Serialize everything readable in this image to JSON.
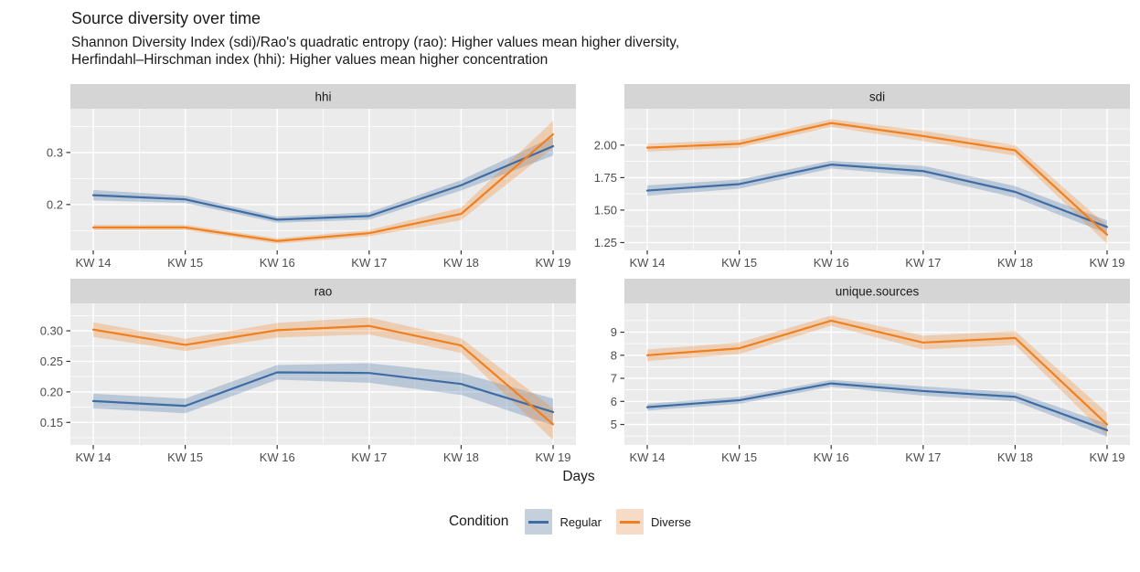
{
  "header": {
    "title": "Source diversity over time",
    "subtitle_line1": "Shannon Diversity Index (sdi)/Rao's quadratic entropy (rao): Higher values mean higher diversity,",
    "subtitle_line2": "Herfindahl–Hirschman index (hhi): Higher values mean higher concentration"
  },
  "axis": {
    "xlabel": "Days"
  },
  "legend": {
    "title": "Condition",
    "items": [
      {
        "label": "Regular",
        "line_color": "#3E6DA5",
        "key_fill": "#C6CFDC"
      },
      {
        "label": "Diverse",
        "line_color": "#F0801F",
        "key_fill": "#F6DCC6"
      }
    ]
  },
  "colors": {
    "panel_background": "#EBEBEB",
    "strip_background": "#D5D5D5",
    "gridline": "#FFFFFF",
    "axis_text": "#4D4D4D",
    "tick_mark": "#333333",
    "text": "#1A1A1A",
    "regular_line": "#3E6DA5",
    "diverse_line": "#F0801F"
  },
  "chart_data": {
    "type": "line",
    "legend_position": "bottom",
    "grid": true,
    "xlabel": "Days",
    "legend_title": "Condition",
    "x_categories": [
      "KW 14",
      "KW 15",
      "KW 16",
      "KW 17",
      "KW 18",
      "KW 19"
    ],
    "facets": [
      {
        "name": "hhi",
        "ylim": [
          0.112,
          0.384
        ],
        "yticks": [
          0.2,
          0.3
        ],
        "ytick_labels": [
          "0.2",
          "0.3"
        ],
        "series": [
          {
            "name": "Regular",
            "color": "#3E6DA5",
            "values": [
              0.218,
              0.21,
              0.171,
              0.178,
              0.237,
              0.312
            ],
            "ci": [
              0.01,
              0.007,
              0.006,
              0.007,
              0.01,
              0.018
            ]
          },
          {
            "name": "Diverse",
            "color": "#F0801F",
            "values": [
              0.156,
              0.156,
              0.13,
              0.145,
              0.182,
              0.335
            ],
            "ci": [
              0.005,
              0.005,
              0.005,
              0.006,
              0.012,
              0.026
            ]
          }
        ]
      },
      {
        "name": "sdi",
        "ylim": [
          1.19,
          2.28
        ],
        "yticks": [
          1.25,
          1.5,
          1.75,
          2.0
        ],
        "ytick_labels": [
          "1.25",
          "1.50",
          "1.75",
          "2.00"
        ],
        "series": [
          {
            "name": "Regular",
            "color": "#3E6DA5",
            "values": [
              1.65,
              1.7,
              1.85,
              1.8,
              1.64,
              1.37
            ],
            "ci": [
              0.04,
              0.035,
              0.03,
              0.04,
              0.045,
              0.05
            ]
          },
          {
            "name": "Diverse",
            "color": "#F0801F",
            "values": [
              1.98,
              2.01,
              2.17,
              2.07,
              1.96,
              1.31
            ],
            "ci": [
              0.03,
              0.03,
              0.03,
              0.04,
              0.04,
              0.07
            ]
          }
        ]
      },
      {
        "name": "rao",
        "ylim": [
          0.113,
          0.345
        ],
        "yticks": [
          0.15,
          0.2,
          0.25,
          0.3
        ],
        "ytick_labels": [
          "0.15",
          "0.20",
          "0.25",
          "0.30"
        ],
        "series": [
          {
            "name": "Regular",
            "color": "#3E6DA5",
            "values": [
              0.185,
              0.177,
              0.232,
              0.231,
              0.213,
              0.167
            ],
            "ci": [
              0.012,
              0.012,
              0.012,
              0.016,
              0.018,
              0.022
            ]
          },
          {
            "name": "Diverse",
            "color": "#F0801F",
            "values": [
              0.302,
              0.277,
              0.301,
              0.308,
              0.276,
              0.147
            ],
            "ci": [
              0.012,
              0.01,
              0.012,
              0.014,
              0.012,
              0.026
            ]
          }
        ]
      },
      {
        "name": "unique.sources",
        "ylim": [
          4.11,
          10.25
        ],
        "yticks": [
          5,
          6,
          7,
          8,
          9
        ],
        "ytick_labels": [
          "5",
          "6",
          "7",
          "8",
          "9"
        ],
        "series": [
          {
            "name": "Regular",
            "color": "#3E6DA5",
            "values": [
              5.75,
              6.05,
              6.78,
              6.45,
              6.2,
              4.75
            ],
            "ci": [
              0.15,
              0.15,
              0.15,
              0.2,
              0.2,
              0.28
            ]
          },
          {
            "name": "Diverse",
            "color": "#F0801F",
            "values": [
              8.0,
              8.3,
              9.5,
              8.55,
              8.75,
              5.0
            ],
            "ci": [
              0.25,
              0.25,
              0.22,
              0.3,
              0.3,
              0.5
            ]
          }
        ]
      }
    ]
  }
}
